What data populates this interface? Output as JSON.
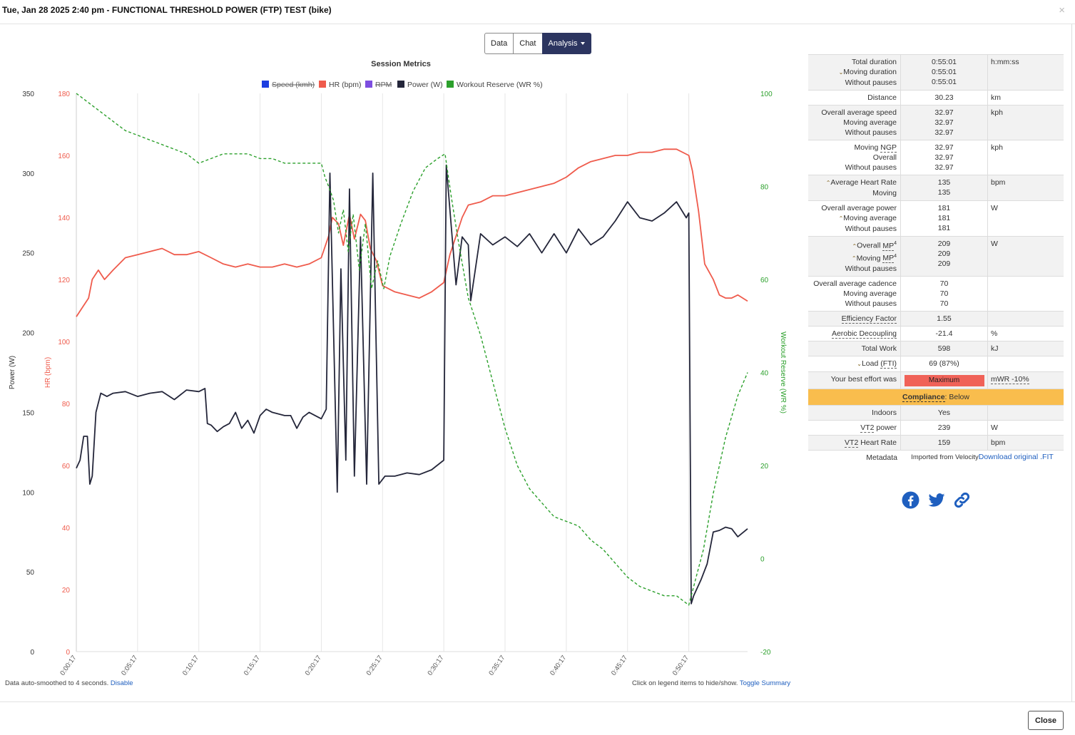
{
  "header": {
    "title": "Tue, Jan 28 2025 2:40 pm - FUNCTIONAL THRESHOLD POWER (FTP) TEST (bike)",
    "close_symbol": "×"
  },
  "tabs": [
    {
      "label": "Data"
    },
    {
      "label": "Chat"
    },
    {
      "label": "Analysis"
    }
  ],
  "chart_data": {
    "type": "line",
    "title": "Session Metrics",
    "legend": [
      {
        "label": "Speed (kmh)",
        "color": "#1d3ee0",
        "hidden": true
      },
      {
        "label": "HR (bpm)",
        "color": "#ef5b4c",
        "hidden": false
      },
      {
        "label": "RPM",
        "color": "#7d4ee0",
        "hidden": true
      },
      {
        "label": "Power (W)",
        "color": "#24263a",
        "hidden": false
      },
      {
        "label": "Workout Reserve (WR %)",
        "color": "#2ca02c",
        "hidden": false
      }
    ],
    "axes": {
      "power": {
        "label": "Power (W)",
        "ticks": [
          "350",
          "300",
          "250",
          "200",
          "150",
          "100",
          "50",
          "0"
        ],
        "range": [
          0,
          350
        ],
        "color": "#333333"
      },
      "hr": {
        "label": "HR (bpm)",
        "ticks": [
          "180",
          "160",
          "140",
          "120",
          "100",
          "80",
          "60",
          "40",
          "20",
          "0"
        ],
        "range": [
          0,
          180
        ],
        "color": "#ef5b4c"
      },
      "wr": {
        "label": "Workout Reserve (WR %)",
        "ticks": [
          "100",
          "80",
          "60",
          "40",
          "20",
          "0",
          "-20"
        ],
        "range": [
          -20,
          100
        ],
        "color": "#2ca02c"
      }
    },
    "x_ticks": [
      "0:00:17",
      "0:05:17",
      "0:10:17",
      "0:15:17",
      "0:20:17",
      "0:25:17",
      "0:30:17",
      "0:35:17",
      "0:40:17",
      "0:45:17",
      "0:50:17"
    ],
    "x_range_min": [
      0,
      54.8
    ],
    "series": [
      {
        "name": "HR (bpm)",
        "axis": "hr",
        "color": "#ef5b4c",
        "dash": false,
        "points": [
          [
            0,
            108
          ],
          [
            0.5,
            111
          ],
          [
            1,
            114
          ],
          [
            1.3,
            120
          ],
          [
            1.8,
            123
          ],
          [
            2.3,
            120
          ],
          [
            3,
            123
          ],
          [
            4,
            127
          ],
          [
            5,
            128
          ],
          [
            6,
            129
          ],
          [
            7,
            130
          ],
          [
            8,
            128
          ],
          [
            9,
            128
          ],
          [
            10,
            129
          ],
          [
            11,
            127
          ],
          [
            12,
            125
          ],
          [
            13,
            124
          ],
          [
            14,
            125
          ],
          [
            15,
            124
          ],
          [
            16,
            124
          ],
          [
            17,
            125
          ],
          [
            18,
            124
          ],
          [
            19,
            125
          ],
          [
            20,
            127
          ],
          [
            20.6,
            134
          ],
          [
            20.9,
            140
          ],
          [
            21.4,
            138
          ],
          [
            21.8,
            131
          ],
          [
            22.3,
            141
          ],
          [
            22.7,
            133
          ],
          [
            23.2,
            141
          ],
          [
            23.6,
            139
          ],
          [
            24,
            130
          ],
          [
            24.5,
            126
          ],
          [
            25,
            118
          ],
          [
            26,
            116
          ],
          [
            27,
            115
          ],
          [
            28,
            114
          ],
          [
            29,
            116
          ],
          [
            30,
            119
          ],
          [
            30.5,
            128
          ],
          [
            31,
            134
          ],
          [
            31.5,
            140
          ],
          [
            32,
            144
          ],
          [
            33,
            145
          ],
          [
            34,
            147
          ],
          [
            35,
            147
          ],
          [
            36,
            148
          ],
          [
            37,
            149
          ],
          [
            38,
            150
          ],
          [
            39,
            151
          ],
          [
            40,
            153
          ],
          [
            41,
            156
          ],
          [
            42,
            158
          ],
          [
            43,
            159
          ],
          [
            44,
            160
          ],
          [
            45,
            160
          ],
          [
            46,
            161
          ],
          [
            47,
            161
          ],
          [
            48,
            162
          ],
          [
            49,
            162
          ],
          [
            50,
            160
          ],
          [
            50.3,
            155
          ],
          [
            50.8,
            142
          ],
          [
            51.3,
            125
          ],
          [
            52,
            120
          ],
          [
            52.5,
            115
          ],
          [
            53,
            114
          ],
          [
            53.5,
            114
          ],
          [
            54,
            115
          ],
          [
            54.8,
            113
          ]
        ]
      },
      {
        "name": "Power (W)",
        "axis": "power",
        "color": "#24263a",
        "dash": false,
        "points": [
          [
            0,
            115
          ],
          [
            0.3,
            120
          ],
          [
            0.6,
            135
          ],
          [
            0.9,
            135
          ],
          [
            1.1,
            105
          ],
          [
            1.3,
            110
          ],
          [
            1.6,
            150
          ],
          [
            2,
            162
          ],
          [
            2.5,
            160
          ],
          [
            3,
            162
          ],
          [
            4,
            163
          ],
          [
            5,
            160
          ],
          [
            6,
            162
          ],
          [
            7,
            163
          ],
          [
            8,
            158
          ],
          [
            9,
            164
          ],
          [
            10,
            163
          ],
          [
            10.5,
            165
          ],
          [
            10.7,
            143
          ],
          [
            11,
            142
          ],
          [
            11.5,
            138
          ],
          [
            12,
            141
          ],
          [
            12.5,
            143
          ],
          [
            13,
            150
          ],
          [
            13.5,
            140
          ],
          [
            14,
            145
          ],
          [
            14.5,
            137
          ],
          [
            15,
            148
          ],
          [
            15.5,
            152
          ],
          [
            16,
            150
          ],
          [
            17,
            148
          ],
          [
            17.5,
            148
          ],
          [
            18,
            140
          ],
          [
            18.5,
            147
          ],
          [
            19,
            150
          ],
          [
            19.5,
            148
          ],
          [
            20,
            146
          ],
          [
            20.4,
            152
          ],
          [
            20.7,
            300
          ],
          [
            21.3,
            100
          ],
          [
            21.6,
            240
          ],
          [
            22,
            120
          ],
          [
            22.3,
            290
          ],
          [
            22.7,
            110
          ],
          [
            23.2,
            260
          ],
          [
            23.7,
            105
          ],
          [
            24.2,
            300
          ],
          [
            24.7,
            105
          ],
          [
            25.2,
            110
          ],
          [
            26,
            110
          ],
          [
            27,
            112
          ],
          [
            28,
            111
          ],
          [
            29,
            114
          ],
          [
            30,
            120
          ],
          [
            30.2,
            305
          ],
          [
            31,
            230
          ],
          [
            31.5,
            260
          ],
          [
            32,
            255
          ],
          [
            32.2,
            220
          ],
          [
            33,
            262
          ],
          [
            34,
            255
          ],
          [
            35,
            260
          ],
          [
            36,
            254
          ],
          [
            37,
            262
          ],
          [
            38,
            250
          ],
          [
            39,
            262
          ],
          [
            40,
            250
          ],
          [
            41,
            265
          ],
          [
            42,
            255
          ],
          [
            43,
            260
          ],
          [
            44,
            270
          ],
          [
            45,
            282
          ],
          [
            46,
            272
          ],
          [
            47,
            270
          ],
          [
            48,
            275
          ],
          [
            49,
            282
          ],
          [
            49.8,
            272
          ],
          [
            50,
            275
          ],
          [
            50.2,
            30
          ],
          [
            50.4,
            35
          ],
          [
            51,
            45
          ],
          [
            51.5,
            55
          ],
          [
            52,
            75
          ],
          [
            52.5,
            76
          ],
          [
            53,
            78
          ],
          [
            53.5,
            77
          ],
          [
            54,
            72
          ],
          [
            54.8,
            77
          ]
        ]
      },
      {
        "name": "Workout Reserve (WR %)",
        "axis": "wr",
        "color": "#2ca02c",
        "dash": true,
        "points": [
          [
            0,
            100
          ],
          [
            1,
            98
          ],
          [
            2,
            96
          ],
          [
            3,
            94
          ],
          [
            4,
            92
          ],
          [
            5,
            91
          ],
          [
            6,
            90
          ],
          [
            7,
            89
          ],
          [
            8,
            88
          ],
          [
            9,
            87
          ],
          [
            10,
            85
          ],
          [
            11,
            86
          ],
          [
            12,
            87
          ],
          [
            13,
            87
          ],
          [
            14,
            87
          ],
          [
            15,
            86
          ],
          [
            16,
            86
          ],
          [
            17,
            85
          ],
          [
            18,
            85
          ],
          [
            19,
            85
          ],
          [
            20,
            85
          ],
          [
            20.3,
            82
          ],
          [
            20.6,
            80
          ],
          [
            21,
            77
          ],
          [
            21.4,
            70
          ],
          [
            21.8,
            75
          ],
          [
            22.2,
            66
          ],
          [
            22.6,
            74
          ],
          [
            23.1,
            62
          ],
          [
            23.6,
            72
          ],
          [
            24.1,
            58
          ],
          [
            24.6,
            64
          ],
          [
            25.1,
            58
          ],
          [
            25.6,
            65
          ],
          [
            26.5,
            72
          ],
          [
            27.5,
            79
          ],
          [
            28.5,
            84
          ],
          [
            29.5,
            86
          ],
          [
            30.1,
            87
          ],
          [
            30.6,
            78
          ],
          [
            31.2,
            68
          ],
          [
            32,
            56
          ],
          [
            33,
            48
          ],
          [
            34,
            38
          ],
          [
            35,
            28
          ],
          [
            36,
            20
          ],
          [
            37,
            15
          ],
          [
            38,
            12
          ],
          [
            39,
            9
          ],
          [
            40,
            8
          ],
          [
            41,
            7
          ],
          [
            42,
            4
          ],
          [
            43,
            2
          ],
          [
            44,
            -1
          ],
          [
            45,
            -4
          ],
          [
            46,
            -6
          ],
          [
            47,
            -7
          ],
          [
            48,
            -8
          ],
          [
            49,
            -8
          ],
          [
            50,
            -10
          ],
          [
            50.6,
            -4
          ],
          [
            51.2,
            2
          ],
          [
            52,
            14
          ],
          [
            53,
            26
          ],
          [
            54,
            35
          ],
          [
            54.8,
            40
          ]
        ]
      }
    ]
  },
  "notes": {
    "smoothing": "Data auto-smoothed to 4 seconds.",
    "disable": "Disable",
    "legend_hint": "Click on legend items to hide/show.",
    "toggle_summary": "Toggle Summary"
  },
  "summary": {
    "duration": {
      "l1": "Total duration",
      "l2": "Moving duration",
      "l3": "Without pauses",
      "v1": "0:55:01",
      "v2": "0:55:01",
      "v3": "0:55:01",
      "unit": "h:mm:ss"
    },
    "distance": {
      "label": "Distance",
      "value": "30.23",
      "unit": "km"
    },
    "speed": {
      "l1": "Overall average speed",
      "l2": "Moving average",
      "l3": "Without pauses",
      "v1": "32.97",
      "v2": "32.97",
      "v3": "32.97",
      "unit": "kph"
    },
    "ngp": {
      "l1a": "Moving ",
      "l1b": "NGP",
      "l2": "Overall",
      "l3": "Without pauses",
      "v1": "32.97",
      "v2": "32.97",
      "v3": "32.97",
      "unit": "kph"
    },
    "hr": {
      "l1": "Average Heart Rate",
      "l2": "Moving",
      "v1": "135",
      "v2": "135",
      "unit": "bpm"
    },
    "power": {
      "l1": "Overall average power",
      "l2": "Moving average",
      "l3": "Without pauses",
      "v1": "181",
      "v2": "181",
      "v3": "181",
      "unit": "W"
    },
    "mp": {
      "l1a": "Overall ",
      "l1b": "MP",
      "l2a": "Moving ",
      "l2b": "MP",
      "sup": "4",
      "l3": "Without pauses",
      "v1": "209",
      "v2": "209",
      "v3": "209",
      "unit": "W"
    },
    "cadence": {
      "l1": "Overall average cadence",
      "l2": "Moving average",
      "l3": "Without pauses",
      "v1": "70",
      "v2": "70",
      "v3": "70"
    },
    "ef": {
      "label": "Efficiency Factor",
      "value": "1.55"
    },
    "decoupling": {
      "label": "Aerobic Decoupling",
      "value": "-21.4",
      "unit": "%"
    },
    "work": {
      "label": "Total Work",
      "value": "598",
      "unit": "kJ"
    },
    "load": {
      "label_a": "Load ",
      "label_b": "(FTI)",
      "value": "69 (87%)"
    },
    "effort": {
      "label": "Your best effort was",
      "badge": "Maximum",
      "unit": "mWR -10%",
      "badge_color": "#f06258"
    },
    "compliance": {
      "label": "Compliance",
      "value": ": Below",
      "color": "#f9bd4d"
    },
    "indoors": {
      "label": "Indoors",
      "value": "Yes"
    },
    "vt2_power": {
      "label_a": "VT2",
      "label_b": " power",
      "value": "239",
      "unit": "W"
    },
    "vt2_hr": {
      "label_a": "VT2",
      "label_b": " Heart Rate",
      "value": "159",
      "unit": "bpm"
    },
    "metadata": {
      "label": "Metadata",
      "imported": "Imported from Velocity",
      "download": "Download original .FIT"
    }
  },
  "share_icons": [
    "facebook-icon",
    "twitter-icon",
    "link-icon"
  ],
  "footer": {
    "close_label": "Close"
  }
}
